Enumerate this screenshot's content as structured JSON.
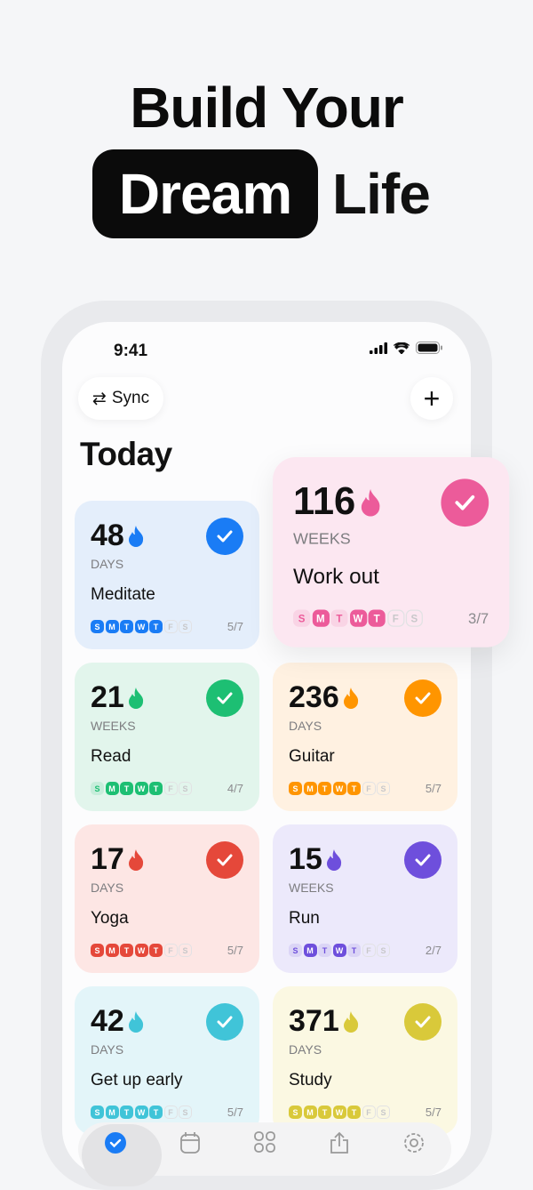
{
  "hero": {
    "line1": "Build Your",
    "highlight": "Dream",
    "line2_rest": "Life"
  },
  "status": {
    "time": "9:41"
  },
  "header": {
    "sync_label": "Sync",
    "add_label": "+",
    "title": "Today"
  },
  "habits": [
    {
      "value": "48",
      "unit": "DAYS",
      "name": "Meditate",
      "count": "5/7",
      "color": "#1a7cf5",
      "bg": "#e4eefb",
      "days": [
        "full",
        "full",
        "full",
        "full",
        "full",
        "empty",
        "empty"
      ]
    },
    {
      "value": "116",
      "unit": "WEEKS",
      "name": "Work out",
      "count": "3/7",
      "color": "#ec5b9a",
      "bg": "#fce7f1",
      "days": [
        "light",
        "full",
        "light",
        "full",
        "full",
        "empty",
        "empty"
      ],
      "popped": true
    },
    {
      "value": "21",
      "unit": "WEEKS",
      "name": "Read",
      "count": "4/7",
      "color": "#1dbf73",
      "bg": "#e2f5ec",
      "days": [
        "light",
        "full",
        "full",
        "full",
        "full",
        "empty",
        "empty"
      ]
    },
    {
      "value": "236",
      "unit": "DAYS",
      "name": "Guitar",
      "count": "5/7",
      "color": "#ff9500",
      "bg": "#fff1e1",
      "days": [
        "full",
        "full",
        "full",
        "full",
        "full",
        "empty",
        "empty"
      ]
    },
    {
      "value": "17",
      "unit": "DAYS",
      "name": "Yoga",
      "count": "5/7",
      "color": "#e5483a",
      "bg": "#fde6e4",
      "days": [
        "full",
        "full",
        "full",
        "full",
        "full",
        "empty",
        "empty"
      ]
    },
    {
      "value": "15",
      "unit": "WEEKS",
      "name": "Run",
      "count": "2/7",
      "color": "#6e4fdc",
      "bg": "#ece9fb",
      "days": [
        "light",
        "full",
        "light",
        "full",
        "light",
        "empty",
        "empty"
      ]
    },
    {
      "value": "42",
      "unit": "DAYS",
      "name": "Get up early",
      "count": "5/7",
      "color": "#40c4d8",
      "bg": "#e3f5f9",
      "days": [
        "full",
        "full",
        "full",
        "full",
        "full",
        "empty",
        "empty"
      ]
    },
    {
      "value": "371",
      "unit": "DAYS",
      "name": "Study",
      "count": "5/7",
      "color": "#d9c93a",
      "bg": "#fbf8e2",
      "days": [
        "full",
        "full",
        "full",
        "full",
        "full",
        "empty",
        "empty"
      ]
    }
  ],
  "day_letters": [
    "S",
    "M",
    "T",
    "W",
    "T",
    "F",
    "S"
  ],
  "nav": [
    "today-icon",
    "calendar-icon",
    "grid-icon",
    "share-icon",
    "gear-icon"
  ]
}
